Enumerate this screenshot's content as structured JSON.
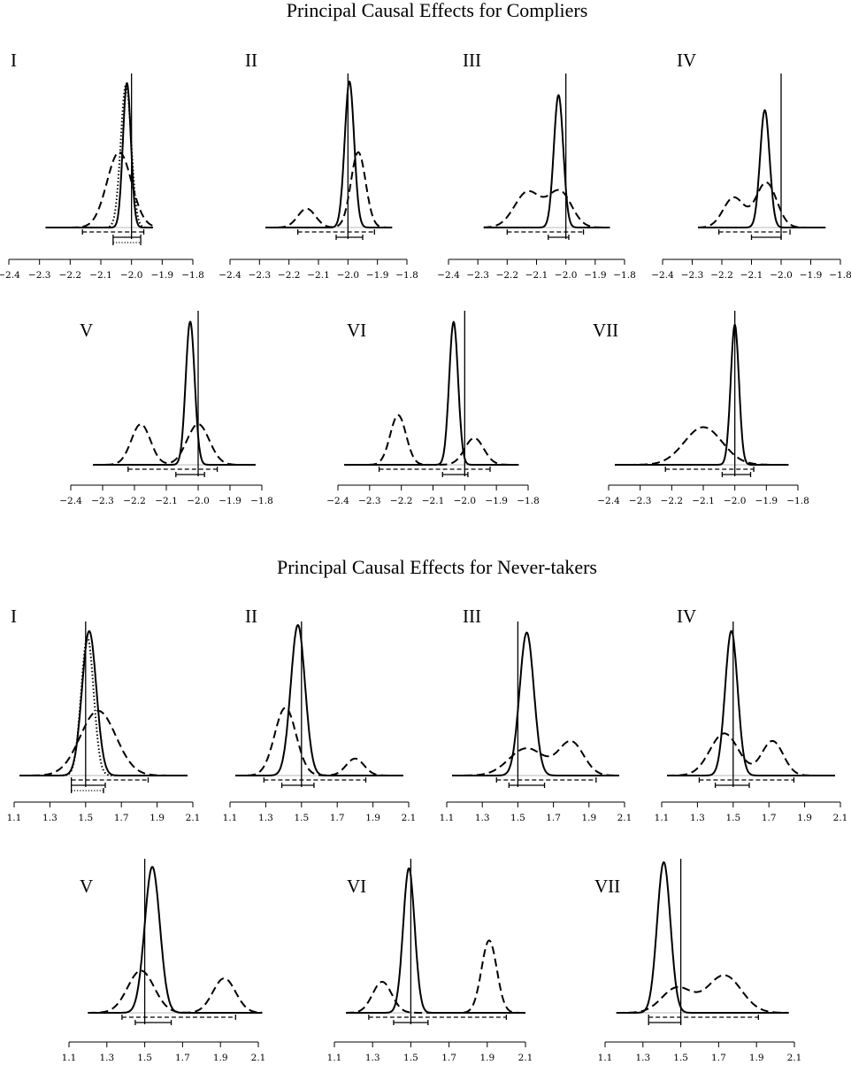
{
  "sections": [
    {
      "title": "Principal Causal Effects for Compliers",
      "ticks": [
        "−2.4",
        "−2.3",
        "−2.2",
        "−2.1",
        "−2.0",
        "−1.9",
        "−1.8"
      ]
    },
    {
      "title": "Principal Causal Effects for Never-takers",
      "ticks": [
        "1.1",
        "1.3",
        "1.5",
        "1.7",
        "1.9",
        "2.1"
      ]
    }
  ],
  "chart_data": [
    {
      "type": "line",
      "title": "Principal Causal Effects for Compliers",
      "xlim": [
        -2.4,
        -1.8
      ],
      "true_value": -2.0,
      "legend": "none",
      "panels": [
        {
          "label": "I",
          "solid": [
            {
              "mean": -2.015,
              "sd": 0.013,
              "weight": 1.0
            }
          ],
          "dashed": [
            {
              "mean": -2.04,
              "sd": 0.04,
              "weight": 1.0
            }
          ],
          "dotted": [
            {
              "mean": -2.018,
              "sd": 0.017,
              "weight": 1.0
            }
          ],
          "peaks": {
            "solid": 0.96,
            "dashed": 0.5,
            "dotted": 0.95
          },
          "range": [
            -2.28,
            -1.93
          ],
          "intervals": {
            "dashed": [
              -2.16,
              -1.96
            ],
            "solid": [
              -2.06,
              -1.97
            ],
            "dotted": [
              -2.06,
              -1.97
            ]
          }
        },
        {
          "label": "II",
          "solid": [
            {
              "mean": -1.995,
              "sd": 0.016,
              "weight": 1.0
            }
          ],
          "dashed": [
            {
              "mean": -2.14,
              "sd": 0.03,
              "weight": 0.2
            },
            {
              "mean": -1.965,
              "sd": 0.025,
              "weight": 0.8
            }
          ],
          "peaks": {
            "solid": 0.97,
            "dashed": 0.5
          },
          "range": [
            -2.28,
            -1.85
          ],
          "intervals": {
            "dashed": [
              -2.17,
              -1.91
            ],
            "solid": [
              -2.04,
              -1.95
            ]
          }
        },
        {
          "label": "III",
          "solid": [
            {
              "mean": -2.025,
              "sd": 0.016,
              "weight": 1.0
            }
          ],
          "dashed": [
            {
              "mean": -2.13,
              "sd": 0.045,
              "weight": 0.5
            },
            {
              "mean": -2.02,
              "sd": 0.04,
              "weight": 0.5
            }
          ],
          "peaks": {
            "solid": 0.88,
            "dashed": 0.25
          },
          "range": [
            -2.28,
            -1.85
          ],
          "intervals": {
            "dashed": [
              -2.2,
              -1.94
            ],
            "solid": [
              -2.06,
              -1.99
            ]
          }
        },
        {
          "label": "IV",
          "solid": [
            {
              "mean": -2.055,
              "sd": 0.016,
              "weight": 1.0
            }
          ],
          "dashed": [
            {
              "mean": -2.16,
              "sd": 0.035,
              "weight": 0.4
            },
            {
              "mean": -2.05,
              "sd": 0.035,
              "weight": 0.6
            }
          ],
          "peaks": {
            "solid": 0.78,
            "dashed": 0.3
          },
          "range": [
            -2.28,
            -1.85
          ],
          "intervals": {
            "dashed": [
              -2.21,
              -1.97
            ],
            "solid": [
              -2.1,
              -2.0
            ]
          }
        },
        {
          "label": "V",
          "solid": [
            {
              "mean": -2.025,
              "sd": 0.014,
              "weight": 1.0
            }
          ],
          "dashed": [
            {
              "mean": -2.18,
              "sd": 0.03,
              "weight": 0.5
            },
            {
              "mean": -2.0,
              "sd": 0.035,
              "weight": 0.5
            }
          ],
          "peaks": {
            "solid": 0.95,
            "dashed": 0.27
          },
          "range": [
            -2.33,
            -1.82
          ],
          "intervals": {
            "dashed": [
              -2.22,
              -1.94
            ],
            "solid": [
              -2.07,
              -1.98
            ]
          }
        },
        {
          "label": "VI",
          "solid": [
            {
              "mean": -2.035,
              "sd": 0.014,
              "weight": 1.0
            }
          ],
          "dashed": [
            {
              "mean": -2.21,
              "sd": 0.025,
              "weight": 0.65
            },
            {
              "mean": -1.97,
              "sd": 0.03,
              "weight": 0.35
            }
          ],
          "peaks": {
            "solid": 0.95,
            "dashed": 0.33
          },
          "range": [
            -2.38,
            -1.83
          ],
          "intervals": {
            "dashed": [
              -2.27,
              -1.92
            ],
            "solid": [
              -2.07,
              -1.99
            ]
          }
        },
        {
          "label": "VII",
          "solid": [
            {
              "mean": -2.0,
              "sd": 0.013,
              "weight": 1.0
            }
          ],
          "dashed": [
            {
              "mean": -2.1,
              "sd": 0.06,
              "weight": 1.0
            }
          ],
          "peaks": {
            "solid": 0.93,
            "dashed": 0.25
          },
          "range": [
            -2.38,
            -1.83
          ],
          "intervals": {
            "dashed": [
              -2.22,
              -1.94
            ],
            "solid": [
              -2.04,
              -1.95
            ]
          }
        }
      ]
    },
    {
      "type": "line",
      "title": "Principal Causal Effects for Never-takers",
      "xlim": [
        1.1,
        2.1
      ],
      "true_value": 1.5,
      "legend": "none",
      "panels": [
        {
          "label": "I",
          "solid": [
            {
              "mean": 1.52,
              "sd": 0.04,
              "weight": 1.0
            }
          ],
          "dashed": [
            {
              "mean": 1.57,
              "sd": 0.1,
              "weight": 1.0
            }
          ],
          "dotted": [
            {
              "mean": 1.51,
              "sd": 0.035,
              "weight": 1.0
            }
          ],
          "peaks": {
            "solid": 0.96,
            "dashed": 0.43,
            "dotted": 0.92
          },
          "range": [
            1.13,
            2.07
          ],
          "intervals": {
            "dashed": [
              1.42,
              1.85
            ],
            "solid": [
              1.42,
              1.61
            ],
            "dotted": [
              1.42,
              1.6
            ]
          }
        },
        {
          "label": "II",
          "solid": [
            {
              "mean": 1.48,
              "sd": 0.04,
              "weight": 1.0
            }
          ],
          "dashed": [
            {
              "mean": 1.41,
              "sd": 0.06,
              "weight": 0.8
            },
            {
              "mean": 1.8,
              "sd": 0.05,
              "weight": 0.2
            }
          ],
          "peaks": {
            "solid": 1.0,
            "dashed": 0.45
          },
          "range": [
            1.13,
            2.07
          ],
          "intervals": {
            "dashed": [
              1.29,
              1.86
            ],
            "solid": [
              1.39,
              1.57
            ]
          }
        },
        {
          "label": "III",
          "solid": [
            {
              "mean": 1.55,
              "sd": 0.04,
              "weight": 1.0
            }
          ],
          "dashed": [
            {
              "mean": 1.55,
              "sd": 0.1,
              "weight": 0.45
            },
            {
              "mean": 1.8,
              "sd": 0.07,
              "weight": 0.55
            }
          ],
          "peaks": {
            "solid": 0.95,
            "dashed": 0.23
          },
          "range": [
            1.13,
            2.07
          ],
          "intervals": {
            "dashed": [
              1.38,
              1.94
            ],
            "solid": [
              1.45,
              1.65
            ]
          }
        },
        {
          "label": "IV",
          "solid": [
            {
              "mean": 1.49,
              "sd": 0.035,
              "weight": 1.0
            }
          ],
          "dashed": [
            {
              "mean": 1.45,
              "sd": 0.08,
              "weight": 0.55
            },
            {
              "mean": 1.72,
              "sd": 0.06,
              "weight": 0.45
            }
          ],
          "peaks": {
            "solid": 0.96,
            "dashed": 0.28
          },
          "range": [
            1.13,
            2.07
          ],
          "intervals": {
            "dashed": [
              1.31,
              1.84
            ],
            "solid": [
              1.4,
              1.59
            ]
          }
        },
        {
          "label": "V",
          "solid": [
            {
              "mean": 1.54,
              "sd": 0.04,
              "weight": 1.0
            }
          ],
          "dashed": [
            {
              "mean": 1.48,
              "sd": 0.07,
              "weight": 0.55
            },
            {
              "mean": 1.92,
              "sd": 0.06,
              "weight": 0.45
            }
          ],
          "peaks": {
            "solid": 0.97,
            "dashed": 0.28
          },
          "range": [
            1.2,
            2.12
          ],
          "intervals": {
            "dashed": [
              1.38,
              1.98
            ],
            "solid": [
              1.45,
              1.64
            ]
          }
        },
        {
          "label": "VI",
          "solid": [
            {
              "mean": 1.49,
              "sd": 0.03,
              "weight": 1.0
            }
          ],
          "dashed": [
            {
              "mean": 1.35,
              "sd": 0.05,
              "weight": 0.3
            },
            {
              "mean": 1.91,
              "sd": 0.04,
              "weight": 0.7
            }
          ],
          "peaks": {
            "solid": 0.96,
            "dashed": 0.48
          },
          "range": [
            1.16,
            2.1
          ],
          "intervals": {
            "dashed": [
              1.28,
              2.0
            ],
            "solid": [
              1.41,
              1.59
            ]
          }
        },
        {
          "label": "VII",
          "solid": [
            {
              "mean": 1.41,
              "sd": 0.035,
              "weight": 1.0
            }
          ],
          "dashed": [
            {
              "mean": 1.48,
              "sd": 0.08,
              "weight": 0.4
            },
            {
              "mean": 1.73,
              "sd": 0.09,
              "weight": 0.6
            }
          ],
          "peaks": {
            "solid": 1.0,
            "dashed": 0.25
          },
          "range": [
            1.16,
            2.07
          ],
          "intervals": {
            "dashed": [
              1.33,
              1.91
            ],
            "solid": [
              1.33,
              1.5
            ]
          }
        }
      ]
    }
  ]
}
